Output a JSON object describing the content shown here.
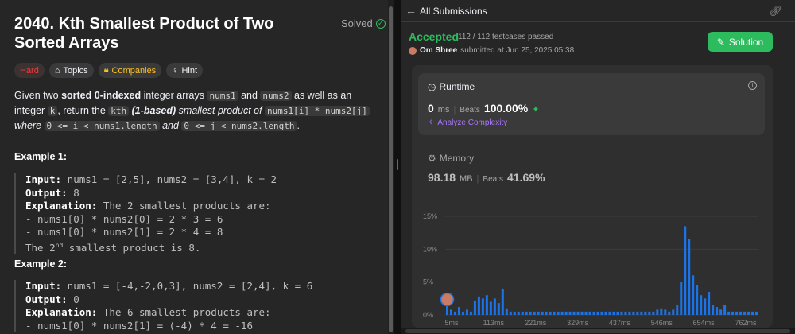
{
  "problem": {
    "title": "2040. Kth Smallest Product of Two Sorted Arrays",
    "solved_label": "Solved",
    "tags": {
      "difficulty": "Hard",
      "topics": "Topics",
      "companies": "Companies",
      "hint": "Hint"
    },
    "desc": {
      "p1": "Given two ",
      "p2": "sorted 0-indexed",
      "p3": " integer arrays ",
      "c1": "nums1",
      "p4": " and ",
      "c2": "nums2",
      "p5": " as well as an integer ",
      "c3": "k",
      "p6": ", return the ",
      "c4": "kth",
      "p7": " (1-based)",
      "p8": " smallest product of ",
      "c5": "nums1[i] * nums2[j]",
      "p9": " where ",
      "c6": "0 <= i < nums1.length",
      "p10": " and ",
      "c7": "0 <= j < nums2.length",
      "p11": "."
    },
    "example1": {
      "title": "Example 1:",
      "input_label": "Input:",
      "input": " nums1 = [2,5], nums2 = [3,4], k = 2",
      "output_label": "Output:",
      "output": " 8",
      "explanation_label": "Explanation:",
      "explanation": " The 2 smallest products are:",
      "line1": "- nums1[0] * nums2[0] = 2 * 3 = 6",
      "line2": "- nums1[0] * nums2[1] = 2 * 4 = 8",
      "line3a": "The 2",
      "line3sup": "nd",
      "line3b": " smallest product is 8."
    },
    "example2": {
      "title": "Example 2:",
      "input_label": "Input:",
      "input": " nums1 = [-4,-2,0,3], nums2 = [2,4], k = 6",
      "output_label": "Output:",
      "output": " 0",
      "explanation_label": "Explanation:",
      "explanation": " The 6 smallest products are:",
      "line1": "- nums1[0] * nums2[1] = (-4) * 4 = -16"
    }
  },
  "submission": {
    "header_title": "All Submissions",
    "status": "Accepted",
    "testcases": "112 / 112 testcases passed",
    "author": "Om Shree",
    "submitted_text": "submitted at Jun 25, 2025 05:38",
    "solution_button": "Solution",
    "runtime": {
      "label": "Runtime",
      "value": "0",
      "unit": "ms",
      "beats_label": "Beats",
      "beats_value": "100.00%",
      "analyze": "Analyze Complexity"
    },
    "memory": {
      "label": "Memory",
      "value": "98.18",
      "unit": "MB",
      "beats_label": "Beats",
      "beats_value": "41.69%"
    }
  },
  "colors": {
    "accent_green": "#2cbb5d",
    "bar_blue": "#1a73e8",
    "hard_red": "#f63737",
    "companies_yellow": "#ffc01e",
    "analyze_purple": "#a875ff"
  },
  "chart_data": {
    "type": "bar",
    "title": "",
    "xlabel": "",
    "ylabel": "",
    "ylim": [
      0,
      15
    ],
    "y_ticks": [
      "15%",
      "10%",
      "5%",
      "0%"
    ],
    "x_ticks": [
      "5ms",
      "113ms",
      "221ms",
      "329ms",
      "437ms",
      "546ms",
      "654ms",
      "762ms"
    ],
    "values": [
      1.5,
      0.8,
      0.5,
      1.2,
      0.5,
      0.8,
      0.5,
      2.2,
      2.8,
      2.5,
      3.0,
      2.0,
      2.5,
      1.8,
      4.0,
      1.0,
      0.5,
      0.5,
      0.5,
      0.5,
      0.5,
      0.5,
      0.5,
      0.5,
      0.5,
      0.5,
      0.5,
      0.5,
      0.5,
      0.5,
      0.5,
      0.5,
      0.5,
      0.5,
      0.5,
      0.5,
      0.5,
      0.5,
      0.5,
      0.5,
      0.5,
      0.5,
      0.5,
      0.5,
      0.5,
      0.5,
      0.5,
      0.5,
      0.5,
      0.5,
      0.5,
      0.5,
      0.5,
      0.8,
      1.0,
      0.8,
      0.5,
      0.8,
      1.5,
      5.0,
      13.5,
      11.5,
      6.0,
      4.5,
      3.0,
      2.5,
      3.5,
      1.5,
      1.2,
      0.8,
      1.5,
      0.5,
      0.5,
      0.5,
      0.5,
      0.5,
      0.5,
      0.5,
      0.5
    ],
    "highlight_index": 0
  }
}
